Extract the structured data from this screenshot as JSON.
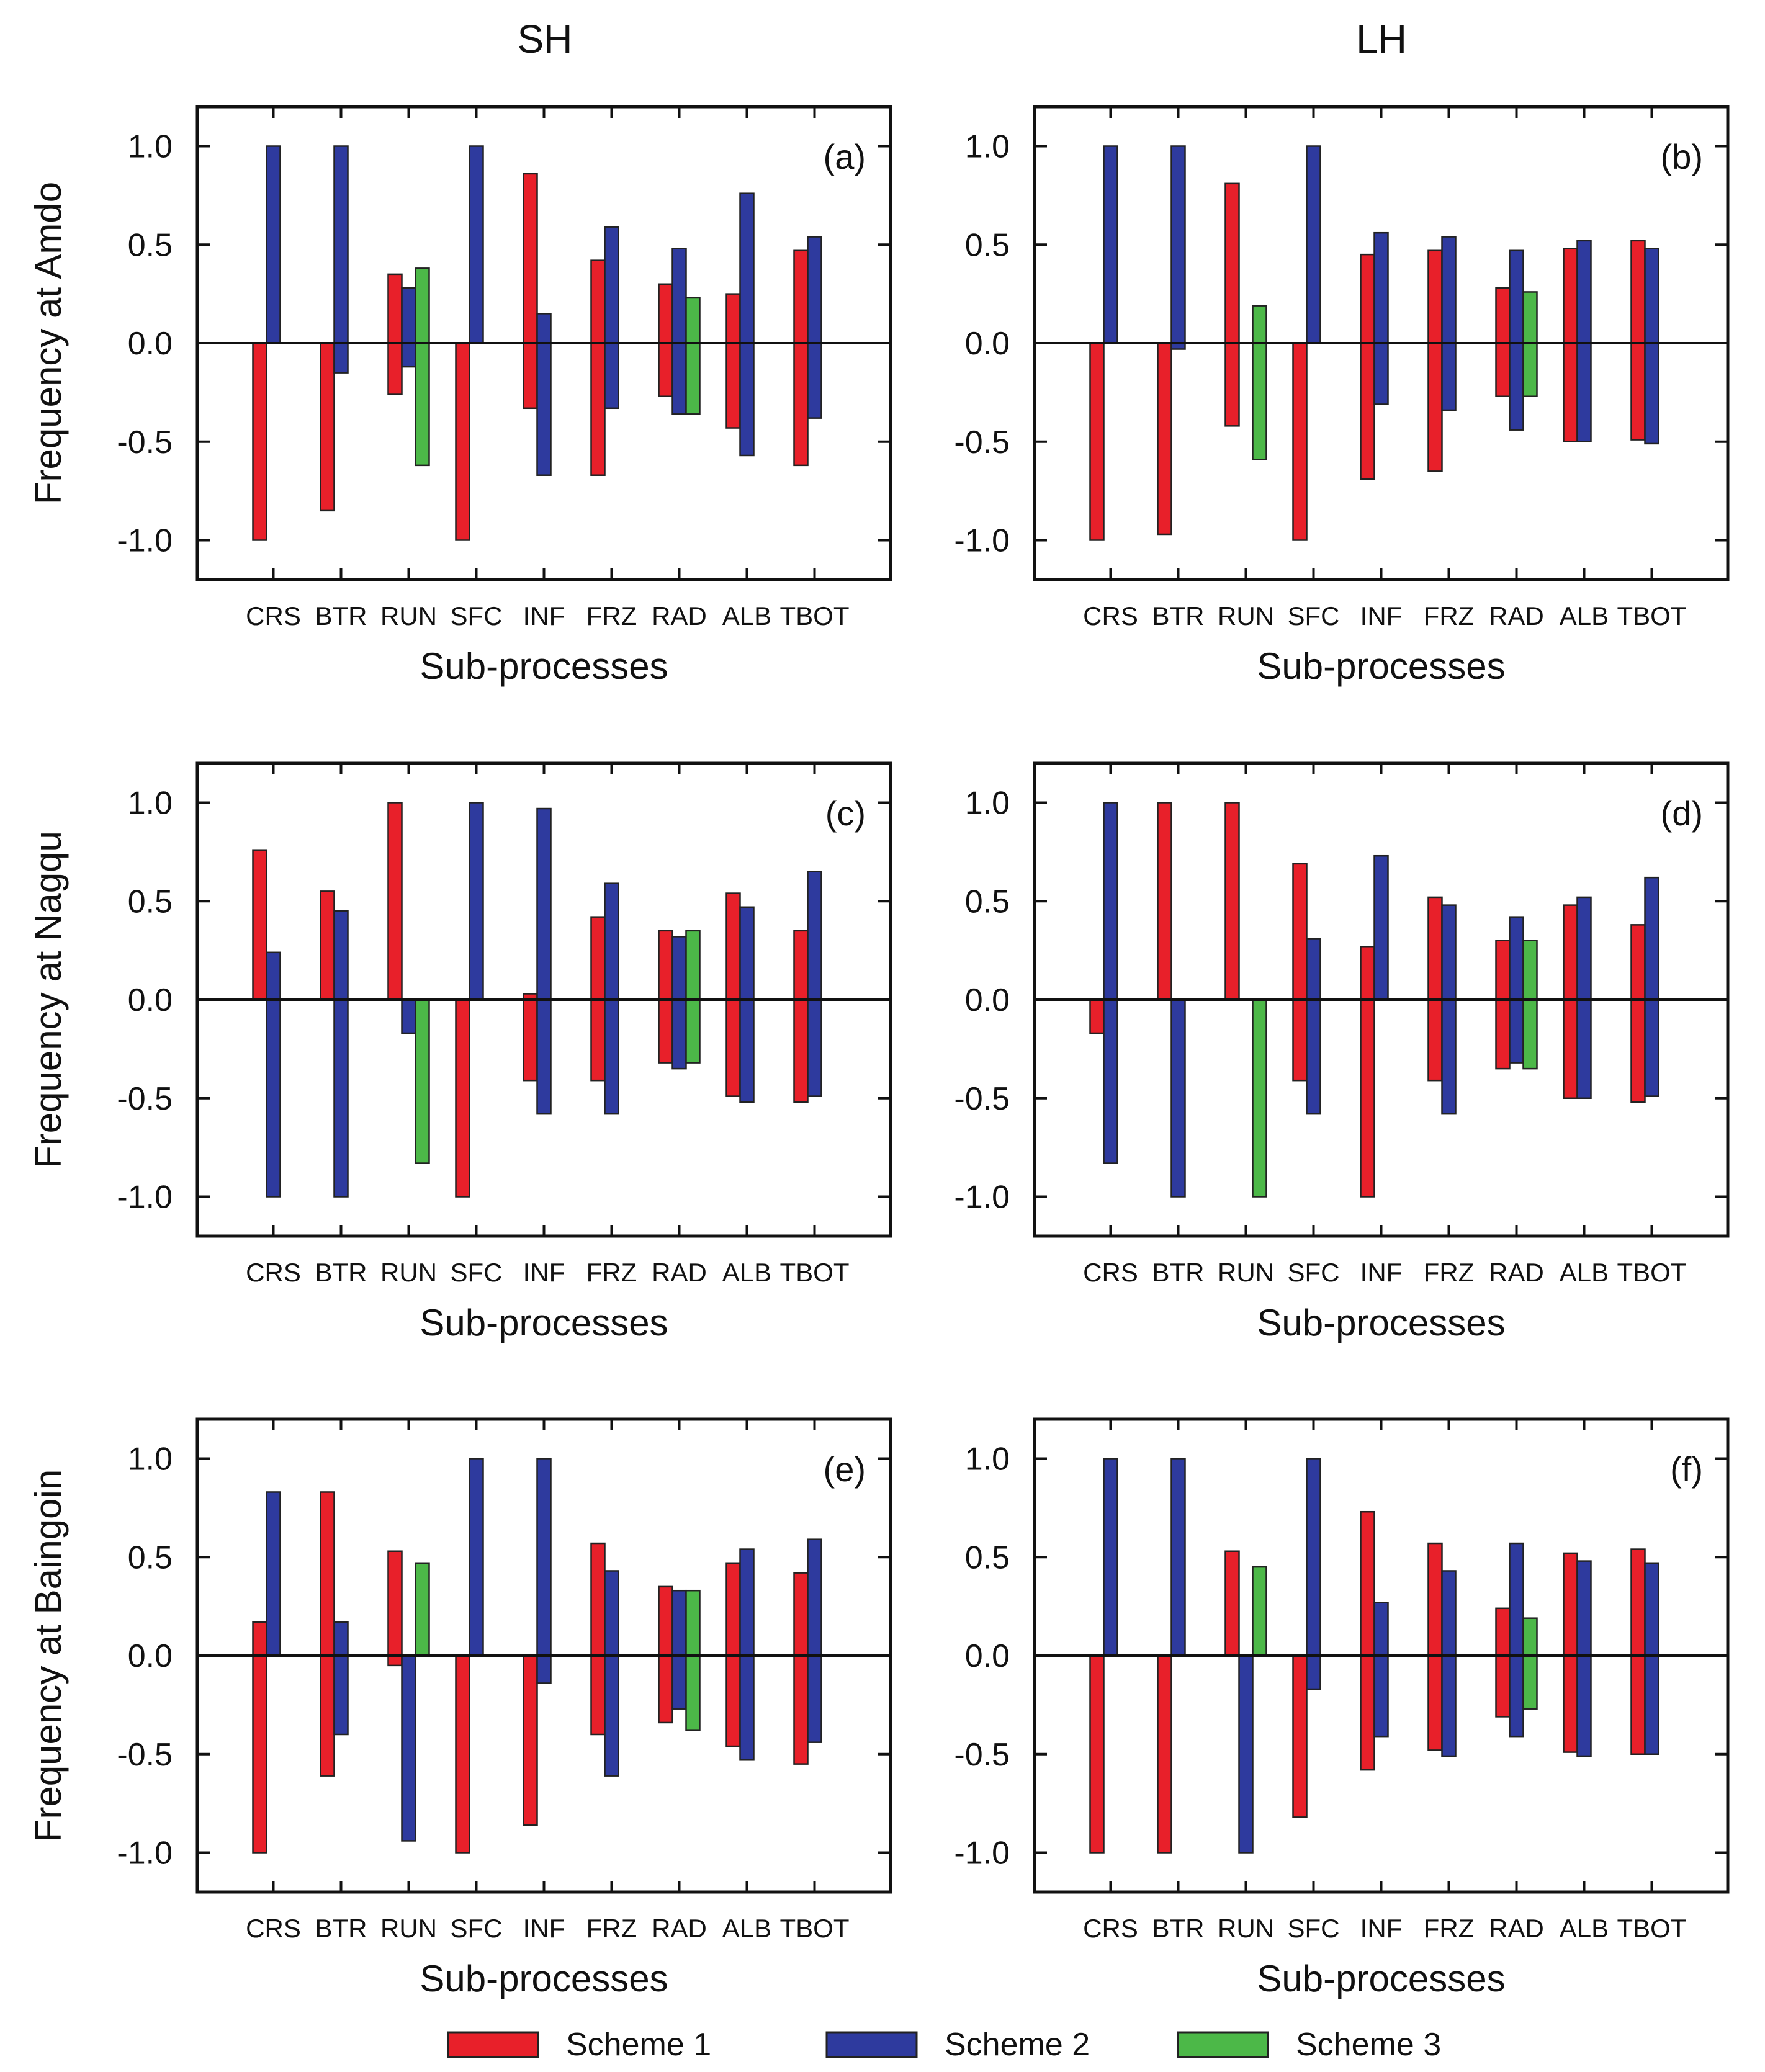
{
  "column_titles": [
    "SH",
    "LH"
  ],
  "legend": {
    "items": [
      {
        "label": "Scheme 1",
        "color": "#e8202a"
      },
      {
        "label": "Scheme 2",
        "color": "#2e3a9e"
      },
      {
        "label": "Scheme 3",
        "color": "#4cb848"
      }
    ]
  },
  "chart_data": [
    {
      "type": "bar",
      "panel": "(a)",
      "title": "SH",
      "xlabel": "Sub-processes",
      "ylabel": "Frequency at Amdo",
      "ylim": [
        -1.2,
        1.2
      ],
      "yticks": [
        "1.0",
        "0.5",
        "0.0",
        "-0.5",
        "-1.0"
      ],
      "categories": [
        "CRS",
        "BTR",
        "RUN",
        "SFC",
        "INF",
        "FRZ",
        "RAD",
        "ALB",
        "TBOT"
      ],
      "series": [
        {
          "name": "Scheme 1",
          "color": "#e8202a",
          "values": [
            [
              -1.0,
              0.0
            ],
            [
              -0.85,
              0.0
            ],
            [
              -0.26,
              0.35
            ],
            [
              -1.0,
              0.0
            ],
            [
              -0.33,
              0.86
            ],
            [
              -0.67,
              0.42
            ],
            [
              -0.27,
              0.3
            ],
            [
              -0.43,
              0.25
            ],
            [
              -0.62,
              0.47
            ]
          ]
        },
        {
          "name": "Scheme 2",
          "color": "#2e3a9e",
          "values": [
            [
              0.0,
              1.0
            ],
            [
              -0.15,
              1.0
            ],
            [
              -0.12,
              0.28
            ],
            [
              0.0,
              1.0
            ],
            [
              -0.67,
              0.15
            ],
            [
              -0.33,
              0.59
            ],
            [
              -0.36,
              0.48
            ],
            [
              -0.57,
              0.76
            ],
            [
              -0.38,
              0.54
            ]
          ]
        },
        {
          "name": "Scheme 3",
          "color": "#4cb848",
          "values": [
            null,
            null,
            [
              -0.62,
              0.38
            ],
            null,
            null,
            null,
            [
              -0.36,
              0.23
            ],
            null,
            null
          ]
        }
      ]
    },
    {
      "type": "bar",
      "panel": "(b)",
      "title": "LH",
      "xlabel": "Sub-processes",
      "ylabel": "",
      "ylim": [
        -1.2,
        1.2
      ],
      "yticks": [
        "1.0",
        "0.5",
        "0.0",
        "-0.5",
        "-1.0"
      ],
      "categories": [
        "CRS",
        "BTR",
        "RUN",
        "SFC",
        "INF",
        "FRZ",
        "RAD",
        "ALB",
        "TBOT"
      ],
      "series": [
        {
          "name": "Scheme 1",
          "color": "#e8202a",
          "values": [
            [
              -1.0,
              0.0
            ],
            [
              -0.97,
              0.0
            ],
            [
              -0.42,
              0.81
            ],
            [
              -1.0,
              0.0
            ],
            [
              -0.69,
              0.45
            ],
            [
              -0.65,
              0.47
            ],
            [
              -0.27,
              0.28
            ],
            [
              -0.5,
              0.48
            ],
            [
              -0.49,
              0.52
            ]
          ]
        },
        {
          "name": "Scheme 2",
          "color": "#2e3a9e",
          "values": [
            [
              0.0,
              1.0
            ],
            [
              -0.03,
              1.0
            ],
            null,
            [
              0.0,
              1.0
            ],
            [
              -0.31,
              0.56
            ],
            [
              -0.34,
              0.54
            ],
            [
              -0.44,
              0.47
            ],
            [
              -0.5,
              0.52
            ],
            [
              -0.51,
              0.48
            ]
          ]
        },
        {
          "name": "Scheme 3",
          "color": "#4cb848",
          "values": [
            null,
            null,
            [
              -0.59,
              0.19
            ],
            null,
            null,
            null,
            [
              -0.27,
              0.26
            ],
            null,
            null
          ]
        }
      ]
    },
    {
      "type": "bar",
      "panel": "(c)",
      "title": "",
      "xlabel": "Sub-processes",
      "ylabel": "Frequency at Nagqu",
      "ylim": [
        -1.2,
        1.2
      ],
      "yticks": [
        "1.0",
        "0.5",
        "0.0",
        "-0.5",
        "-1.0"
      ],
      "categories": [
        "CRS",
        "BTR",
        "RUN",
        "SFC",
        "INF",
        "FRZ",
        "RAD",
        "ALB",
        "TBOT"
      ],
      "series": [
        {
          "name": "Scheme 1",
          "color": "#e8202a",
          "values": [
            [
              0.0,
              0.76
            ],
            [
              0.0,
              0.55
            ],
            [
              0.0,
              1.0
            ],
            [
              -1.0,
              0.0
            ],
            [
              -0.41,
              0.03
            ],
            [
              -0.41,
              0.42
            ],
            [
              -0.32,
              0.35
            ],
            [
              -0.49,
              0.54
            ],
            [
              -0.52,
              0.35
            ]
          ]
        },
        {
          "name": "Scheme 2",
          "color": "#2e3a9e",
          "values": [
            [
              -1.0,
              0.24
            ],
            [
              -1.0,
              0.45
            ],
            [
              -0.17,
              0.0
            ],
            [
              0.0,
              1.0
            ],
            [
              -0.58,
              0.97
            ],
            [
              -0.58,
              0.59
            ],
            [
              -0.35,
              0.32
            ],
            [
              -0.52,
              0.47
            ],
            [
              -0.49,
              0.65
            ]
          ]
        },
        {
          "name": "Scheme 3",
          "color": "#4cb848",
          "values": [
            null,
            null,
            [
              -0.83,
              0.0
            ],
            null,
            null,
            null,
            [
              -0.32,
              0.35
            ],
            null,
            null
          ]
        }
      ]
    },
    {
      "type": "bar",
      "panel": "(d)",
      "title": "",
      "xlabel": "Sub-processes",
      "ylabel": "",
      "ylim": [
        -1.2,
        1.2
      ],
      "yticks": [
        "1.0",
        "0.5",
        "0.0",
        "-0.5",
        "-1.0"
      ],
      "categories": [
        "CRS",
        "BTR",
        "RUN",
        "SFC",
        "INF",
        "FRZ",
        "RAD",
        "ALB",
        "TBOT"
      ],
      "series": [
        {
          "name": "Scheme 1",
          "color": "#e8202a",
          "values": [
            [
              -0.17,
              0.0
            ],
            [
              0.0,
              1.0
            ],
            [
              0.0,
              1.0
            ],
            [
              -0.41,
              0.69
            ],
            [
              -1.0,
              0.27
            ],
            [
              -0.41,
              0.52
            ],
            [
              -0.35,
              0.3
            ],
            [
              -0.5,
              0.48
            ],
            [
              -0.52,
              0.38
            ]
          ]
        },
        {
          "name": "Scheme 2",
          "color": "#2e3a9e",
          "values": [
            [
              -0.83,
              1.0
            ],
            [
              -1.0,
              0.0
            ],
            null,
            [
              -0.58,
              0.31
            ],
            [
              0.0,
              0.73
            ],
            [
              -0.58,
              0.48
            ],
            [
              -0.32,
              0.42
            ],
            [
              -0.5,
              0.52
            ],
            [
              -0.49,
              0.62
            ]
          ]
        },
        {
          "name": "Scheme 3",
          "color": "#4cb848",
          "values": [
            null,
            null,
            [
              -1.0,
              0.0
            ],
            null,
            null,
            null,
            [
              -0.35,
              0.3
            ],
            null,
            null
          ]
        }
      ]
    },
    {
      "type": "bar",
      "panel": "(e)",
      "title": "",
      "xlabel": "Sub-processes",
      "ylabel": "Frequency at Baingoin",
      "ylim": [
        -1.2,
        1.2
      ],
      "yticks": [
        "1.0",
        "0.5",
        "0.0",
        "-0.5",
        "-1.0"
      ],
      "categories": [
        "CRS",
        "BTR",
        "RUN",
        "SFC",
        "INF",
        "FRZ",
        "RAD",
        "ALB",
        "TBOT"
      ],
      "series": [
        {
          "name": "Scheme 1",
          "color": "#e8202a",
          "values": [
            [
              -1.0,
              0.17
            ],
            [
              -0.61,
              0.83
            ],
            [
              -0.05,
              0.53
            ],
            [
              -1.0,
              0.0
            ],
            [
              -0.86,
              0.0
            ],
            [
              -0.4,
              0.57
            ],
            [
              -0.34,
              0.35
            ],
            [
              -0.46,
              0.47
            ],
            [
              -0.55,
              0.42
            ]
          ]
        },
        {
          "name": "Scheme 2",
          "color": "#2e3a9e",
          "values": [
            [
              0.0,
              0.83
            ],
            [
              -0.4,
              0.17
            ],
            [
              -0.94,
              0.0
            ],
            [
              0.0,
              1.0
            ],
            [
              -0.14,
              1.0
            ],
            [
              -0.61,
              0.43
            ],
            [
              -0.27,
              0.33
            ],
            [
              -0.53,
              0.54
            ],
            [
              -0.44,
              0.59
            ]
          ]
        },
        {
          "name": "Scheme 3",
          "color": "#4cb848",
          "values": [
            null,
            null,
            [
              0.0,
              0.47
            ],
            null,
            null,
            null,
            [
              -0.38,
              0.33
            ],
            null,
            null
          ]
        }
      ]
    },
    {
      "type": "bar",
      "panel": "(f)",
      "title": "",
      "xlabel": "Sub-processes",
      "ylabel": "",
      "ylim": [
        -1.2,
        1.2
      ],
      "yticks": [
        "1.0",
        "0.5",
        "0.0",
        "-0.5",
        "-1.0"
      ],
      "categories": [
        "CRS",
        "BTR",
        "RUN",
        "SFC",
        "INF",
        "FRZ",
        "RAD",
        "ALB",
        "TBOT"
      ],
      "series": [
        {
          "name": "Scheme 1",
          "color": "#e8202a",
          "values": [
            [
              -1.0,
              0.0
            ],
            [
              -1.0,
              0.0
            ],
            [
              0.0,
              0.53
            ],
            [
              -0.82,
              0.0
            ],
            [
              -0.58,
              0.73
            ],
            [
              -0.48,
              0.57
            ],
            [
              -0.31,
              0.24
            ],
            [
              -0.49,
              0.52
            ],
            [
              -0.5,
              0.54
            ]
          ]
        },
        {
          "name": "Scheme 2",
          "color": "#2e3a9e",
          "values": [
            [
              0.0,
              1.0
            ],
            [
              0.0,
              1.0
            ],
            [
              -1.0,
              0.0
            ],
            [
              -0.17,
              1.0
            ],
            [
              -0.41,
              0.27
            ],
            [
              -0.51,
              0.43
            ],
            [
              -0.41,
              0.57
            ],
            [
              -0.51,
              0.48
            ],
            [
              -0.5,
              0.47
            ]
          ]
        },
        {
          "name": "Scheme 3",
          "color": "#4cb848",
          "values": [
            null,
            null,
            [
              0.0,
              0.45
            ],
            null,
            null,
            null,
            [
              -0.27,
              0.19
            ],
            null,
            null
          ]
        }
      ]
    }
  ]
}
